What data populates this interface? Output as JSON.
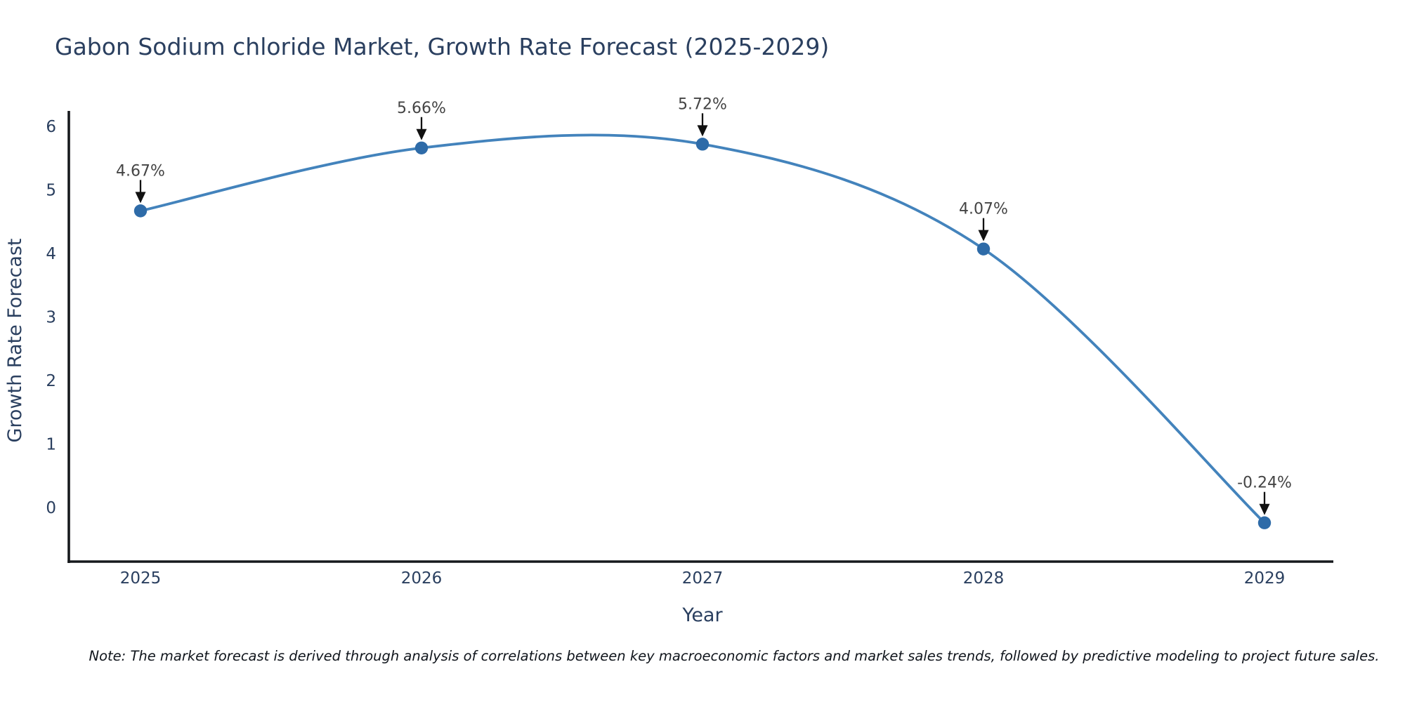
{
  "page": {
    "note": "Note: The market forecast is derived through analysis of correlations between key macroeconomic factors and market sales trends, followed by predictive modeling to project future sales."
  },
  "chart_data": {
    "type": "line",
    "title": "Gabon Sodium chloride Market, Growth Rate Forecast (2025-2029)",
    "xlabel": "Year",
    "ylabel": "Growth Rate Forecast",
    "categories": [
      "2025",
      "2026",
      "2027",
      "2028",
      "2029"
    ],
    "series": [
      {
        "name": "Growth Rate Forecast",
        "values": [
          4.67,
          5.66,
          5.72,
          4.07,
          -0.24
        ]
      }
    ],
    "point_labels": [
      "4.67%",
      "5.66%",
      "5.72%",
      "4.07%",
      "-0.24%"
    ],
    "yticks": [
      0,
      1,
      2,
      3,
      4,
      5,
      6
    ],
    "ylim": [
      -0.85,
      6.22
    ],
    "grid": false,
    "legend": "none",
    "line_shape": "spline",
    "annotation_style": "down-arrow-to-point",
    "colors": {
      "line": "#4383bc",
      "marker": "#2e6ba8",
      "axis": "#16191d",
      "arrow": "#111111",
      "heading_text": "#2a3f5f",
      "annotation_text": "#444444"
    }
  }
}
